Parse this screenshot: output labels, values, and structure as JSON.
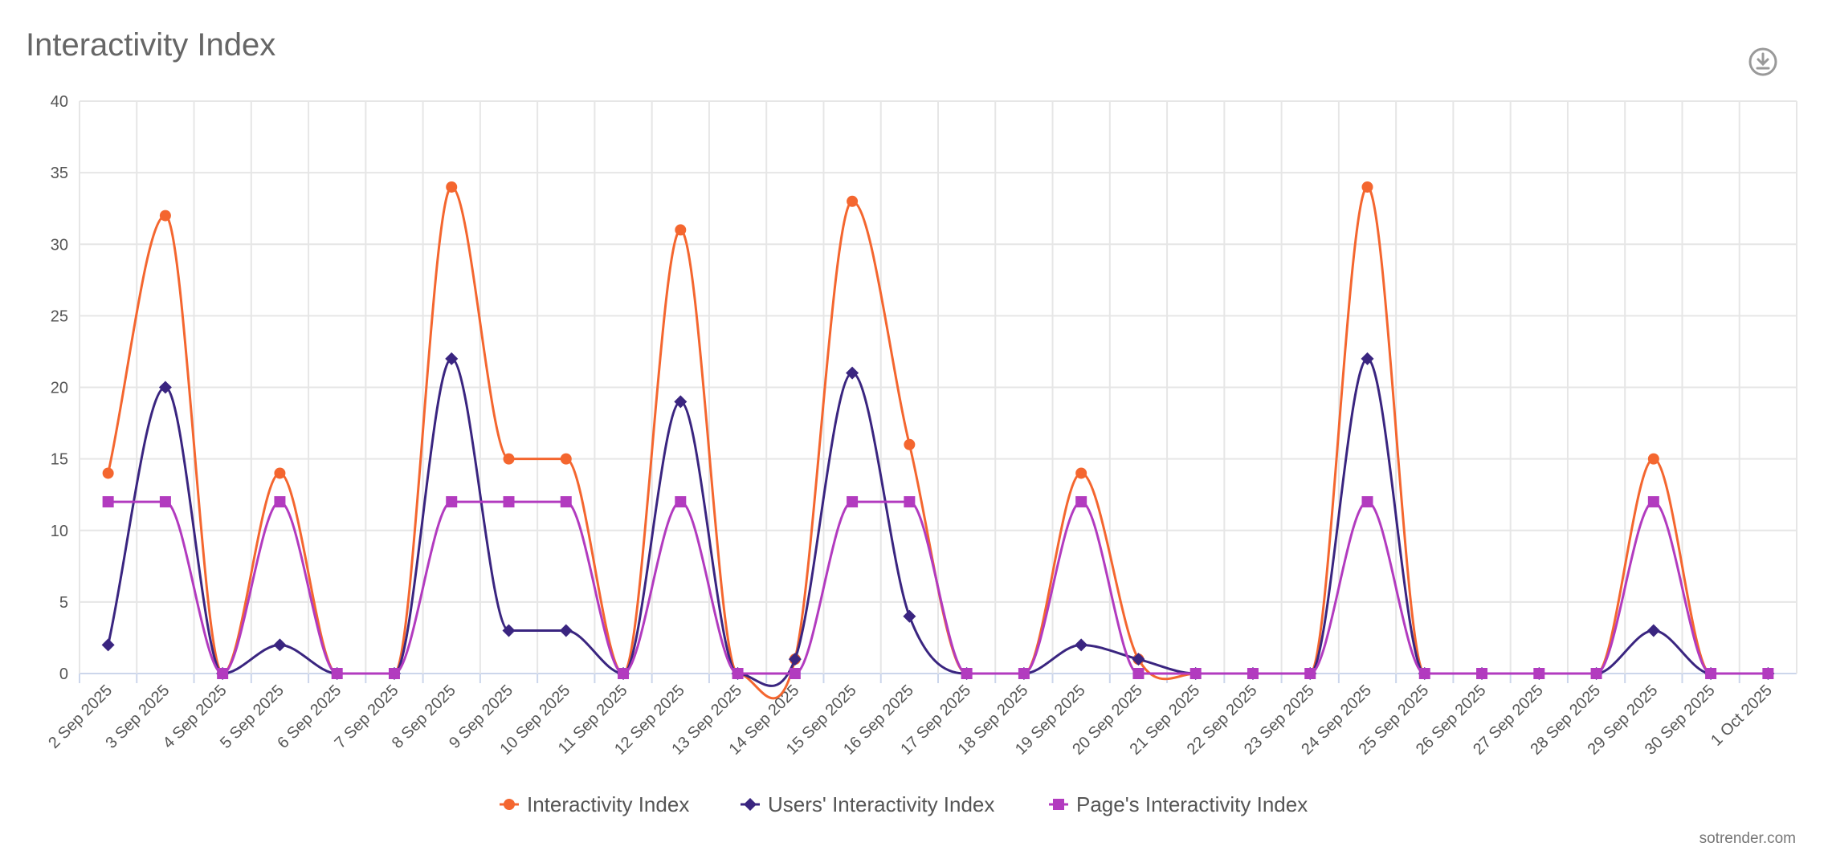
{
  "title": "Interactivity Index",
  "download_icon": "download-circle-icon",
  "credit": "sotrender.com",
  "chart_data": {
    "type": "line",
    "title": "Interactivity Index",
    "categories": [
      "2 Sep 2025",
      "3 Sep 2025",
      "4 Sep 2025",
      "5 Sep 2025",
      "6 Sep 2025",
      "7 Sep 2025",
      "8 Sep 2025",
      "9 Sep 2025",
      "10 Sep 2025",
      "11 Sep 2025",
      "12 Sep 2025",
      "13 Sep 2025",
      "14 Sep 2025",
      "15 Sep 2025",
      "16 Sep 2025",
      "17 Sep 2025",
      "18 Sep 2025",
      "19 Sep 2025",
      "20 Sep 2025",
      "21 Sep 2025",
      "22 Sep 2025",
      "23 Sep 2025",
      "24 Sep 2025",
      "25 Sep 2025",
      "26 Sep 2025",
      "27 Sep 2025",
      "28 Sep 2025",
      "29 Sep 2025",
      "30 Sep 2025",
      "1 Oct 2025"
    ],
    "ylim": [
      0,
      40
    ],
    "yticks": [
      0,
      5,
      10,
      15,
      20,
      25,
      30,
      35,
      40
    ],
    "grid": true,
    "legend": "bottom",
    "series": [
      {
        "name": "Interactivity Index",
        "color": "#f4662f",
        "marker": "circle",
        "values": [
          14,
          32,
          0,
          14,
          0,
          0,
          34,
          15,
          15,
          0,
          31,
          0,
          1,
          33,
          16,
          0,
          0,
          14,
          1,
          0,
          0,
          0,
          34,
          0,
          0,
          0,
          0,
          15,
          0,
          0
        ]
      },
      {
        "name": "Users' Interactivity Index",
        "color": "#3a2580",
        "marker": "diamond",
        "values": [
          2,
          20,
          0,
          2,
          0,
          0,
          22,
          3,
          3,
          0,
          19,
          0,
          1,
          21,
          4,
          0,
          0,
          2,
          1,
          0,
          0,
          0,
          22,
          0,
          0,
          0,
          0,
          3,
          0,
          0
        ]
      },
      {
        "name": "Page's Interactivity Index",
        "color": "#b23bbf",
        "marker": "square",
        "values": [
          12,
          12,
          0,
          12,
          0,
          0,
          12,
          12,
          12,
          0,
          12,
          0,
          0,
          12,
          12,
          0,
          0,
          12,
          0,
          0,
          0,
          0,
          12,
          0,
          0,
          0,
          0,
          12,
          0,
          0
        ]
      }
    ]
  }
}
